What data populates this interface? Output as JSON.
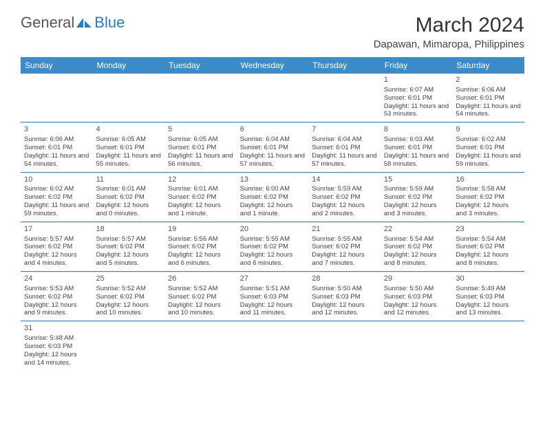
{
  "logo": {
    "text1": "General",
    "text2": "Blue"
  },
  "title": "March 2024",
  "location": "Dapawan, Mimaropa, Philippines",
  "colors": {
    "header_bg": "#3b8bc9",
    "header_text": "#ffffff",
    "week_divider": "#3b8bc9",
    "day_divider": "#dddddd",
    "text": "#333333",
    "logo_blue": "#2c7bb8",
    "background": "#ffffff"
  },
  "typography": {
    "title_fontsize": 30,
    "location_fontsize": 15,
    "dayheader_fontsize": 12,
    "daynum_fontsize": 11,
    "cell_fontsize": 9.5
  },
  "dayNames": [
    "Sunday",
    "Monday",
    "Tuesday",
    "Wednesday",
    "Thursday",
    "Friday",
    "Saturday"
  ],
  "weeks": [
    [
      null,
      null,
      null,
      null,
      null,
      {
        "n": "1",
        "sr": "Sunrise: 6:07 AM",
        "ss": "Sunset: 6:01 PM",
        "dl": "Daylight: 11 hours and 53 minutes."
      },
      {
        "n": "2",
        "sr": "Sunrise: 6:06 AM",
        "ss": "Sunset: 6:01 PM",
        "dl": "Daylight: 11 hours and 54 minutes."
      }
    ],
    [
      {
        "n": "3",
        "sr": "Sunrise: 6:06 AM",
        "ss": "Sunset: 6:01 PM",
        "dl": "Daylight: 11 hours and 54 minutes."
      },
      {
        "n": "4",
        "sr": "Sunrise: 6:05 AM",
        "ss": "Sunset: 6:01 PM",
        "dl": "Daylight: 11 hours and 55 minutes."
      },
      {
        "n": "5",
        "sr": "Sunrise: 6:05 AM",
        "ss": "Sunset: 6:01 PM",
        "dl": "Daylight: 11 hours and 56 minutes."
      },
      {
        "n": "6",
        "sr": "Sunrise: 6:04 AM",
        "ss": "Sunset: 6:01 PM",
        "dl": "Daylight: 11 hours and 57 minutes."
      },
      {
        "n": "7",
        "sr": "Sunrise: 6:04 AM",
        "ss": "Sunset: 6:01 PM",
        "dl": "Daylight: 11 hours and 57 minutes."
      },
      {
        "n": "8",
        "sr": "Sunrise: 6:03 AM",
        "ss": "Sunset: 6:01 PM",
        "dl": "Daylight: 11 hours and 58 minutes."
      },
      {
        "n": "9",
        "sr": "Sunrise: 6:02 AM",
        "ss": "Sunset: 6:01 PM",
        "dl": "Daylight: 11 hours and 59 minutes."
      }
    ],
    [
      {
        "n": "10",
        "sr": "Sunrise: 6:02 AM",
        "ss": "Sunset: 6:02 PM",
        "dl": "Daylight: 11 hours and 59 minutes."
      },
      {
        "n": "11",
        "sr": "Sunrise: 6:01 AM",
        "ss": "Sunset: 6:02 PM",
        "dl": "Daylight: 12 hours and 0 minutes."
      },
      {
        "n": "12",
        "sr": "Sunrise: 6:01 AM",
        "ss": "Sunset: 6:02 PM",
        "dl": "Daylight: 12 hours and 1 minute."
      },
      {
        "n": "13",
        "sr": "Sunrise: 6:00 AM",
        "ss": "Sunset: 6:02 PM",
        "dl": "Daylight: 12 hours and 1 minute."
      },
      {
        "n": "14",
        "sr": "Sunrise: 5:59 AM",
        "ss": "Sunset: 6:02 PM",
        "dl": "Daylight: 12 hours and 2 minutes."
      },
      {
        "n": "15",
        "sr": "Sunrise: 5:59 AM",
        "ss": "Sunset: 6:02 PM",
        "dl": "Daylight: 12 hours and 3 minutes."
      },
      {
        "n": "16",
        "sr": "Sunrise: 5:58 AM",
        "ss": "Sunset: 6:02 PM",
        "dl": "Daylight: 12 hours and 3 minutes."
      }
    ],
    [
      {
        "n": "17",
        "sr": "Sunrise: 5:57 AM",
        "ss": "Sunset: 6:02 PM",
        "dl": "Daylight: 12 hours and 4 minutes."
      },
      {
        "n": "18",
        "sr": "Sunrise: 5:57 AM",
        "ss": "Sunset: 6:02 PM",
        "dl": "Daylight: 12 hours and 5 minutes."
      },
      {
        "n": "19",
        "sr": "Sunrise: 5:56 AM",
        "ss": "Sunset: 6:02 PM",
        "dl": "Daylight: 12 hours and 6 minutes."
      },
      {
        "n": "20",
        "sr": "Sunrise: 5:55 AM",
        "ss": "Sunset: 6:02 PM",
        "dl": "Daylight: 12 hours and 6 minutes."
      },
      {
        "n": "21",
        "sr": "Sunrise: 5:55 AM",
        "ss": "Sunset: 6:02 PM",
        "dl": "Daylight: 12 hours and 7 minutes."
      },
      {
        "n": "22",
        "sr": "Sunrise: 5:54 AM",
        "ss": "Sunset: 6:02 PM",
        "dl": "Daylight: 12 hours and 8 minutes."
      },
      {
        "n": "23",
        "sr": "Sunrise: 5:54 AM",
        "ss": "Sunset: 6:02 PM",
        "dl": "Daylight: 12 hours and 8 minutes."
      }
    ],
    [
      {
        "n": "24",
        "sr": "Sunrise: 5:53 AM",
        "ss": "Sunset: 6:02 PM",
        "dl": "Daylight: 12 hours and 9 minutes."
      },
      {
        "n": "25",
        "sr": "Sunrise: 5:52 AM",
        "ss": "Sunset: 6:02 PM",
        "dl": "Daylight: 12 hours and 10 minutes."
      },
      {
        "n": "26",
        "sr": "Sunrise: 5:52 AM",
        "ss": "Sunset: 6:02 PM",
        "dl": "Daylight: 12 hours and 10 minutes."
      },
      {
        "n": "27",
        "sr": "Sunrise: 5:51 AM",
        "ss": "Sunset: 6:03 PM",
        "dl": "Daylight: 12 hours and 11 minutes."
      },
      {
        "n": "28",
        "sr": "Sunrise: 5:50 AM",
        "ss": "Sunset: 6:03 PM",
        "dl": "Daylight: 12 hours and 12 minutes."
      },
      {
        "n": "29",
        "sr": "Sunrise: 5:50 AM",
        "ss": "Sunset: 6:03 PM",
        "dl": "Daylight: 12 hours and 12 minutes."
      },
      {
        "n": "30",
        "sr": "Sunrise: 5:49 AM",
        "ss": "Sunset: 6:03 PM",
        "dl": "Daylight: 12 hours and 13 minutes."
      }
    ],
    [
      {
        "n": "31",
        "sr": "Sunrise: 5:48 AM",
        "ss": "Sunset: 6:03 PM",
        "dl": "Daylight: 12 hours and 14 minutes."
      },
      null,
      null,
      null,
      null,
      null,
      null
    ]
  ]
}
